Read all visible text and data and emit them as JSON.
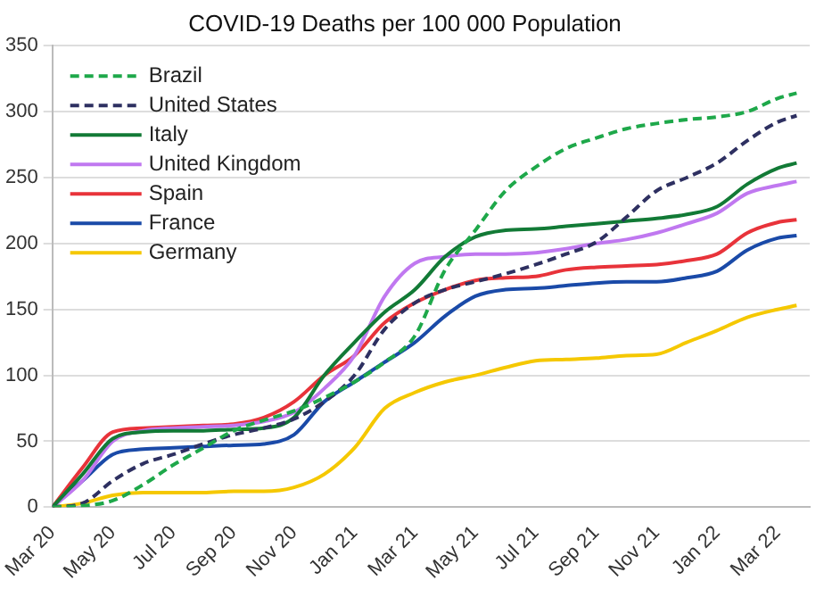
{
  "chart_data": {
    "type": "line",
    "title": "COVID-19 Deaths per 100 000 Population",
    "x": [
      "2020-03",
      "2020-04",
      "2020-05",
      "2020-06",
      "2020-07",
      "2020-08",
      "2020-09",
      "2020-10",
      "2020-11",
      "2020-12",
      "2021-01",
      "2021-02",
      "2021-03",
      "2021-04",
      "2021-05",
      "2021-06",
      "2021-07",
      "2021-08",
      "2021-09",
      "2021-10",
      "2021-11",
      "2021-12",
      "2022-01",
      "2022-02",
      "2022-03",
      "2022-03-20"
    ],
    "series": [
      {
        "name": "Brazil",
        "color": "#1ea84a",
        "line_style": "dashed",
        "values": [
          0,
          1,
          5,
          17,
          32,
          45,
          58,
          66,
          73,
          83,
          95,
          110,
          130,
          180,
          210,
          240,
          258,
          272,
          280,
          287,
          291,
          294,
          296,
          300,
          310,
          314
        ]
      },
      {
        "name": "United States",
        "color": "#2e3061",
        "line_style": "dashed",
        "values": [
          0,
          3,
          20,
          33,
          40,
          48,
          55,
          60,
          67,
          80,
          100,
          135,
          155,
          165,
          171,
          177,
          184,
          192,
          201,
          220,
          240,
          250,
          261,
          278,
          292,
          297
        ]
      },
      {
        "name": "Italy",
        "color": "#127a36",
        "line_style": "solid",
        "values": [
          0,
          25,
          52,
          57,
          58,
          58,
          59,
          60,
          68,
          100,
          125,
          148,
          165,
          190,
          205,
          210,
          211,
          213,
          215,
          217,
          219,
          222,
          228,
          245,
          257,
          261
        ]
      },
      {
        "name": "United Kingdom",
        "color": "#c078f0",
        "line_style": "solid",
        "values": [
          0,
          20,
          50,
          58,
          60,
          61,
          62,
          65,
          72,
          90,
          115,
          160,
          185,
          190,
          192,
          192,
          193,
          196,
          200,
          203,
          208,
          215,
          223,
          238,
          244,
          247
        ]
      },
      {
        "name": "Spain",
        "color": "#e8333a",
        "line_style": "solid",
        "values": [
          0,
          30,
          57,
          60,
          61,
          62,
          63,
          68,
          80,
          100,
          115,
          140,
          155,
          165,
          172,
          174,
          175,
          180,
          182,
          183,
          184,
          187,
          192,
          208,
          216,
          218
        ]
      },
      {
        "name": "France",
        "color": "#1a4aa8",
        "line_style": "solid",
        "values": [
          0,
          20,
          40,
          44,
          45,
          46,
          47,
          48,
          55,
          80,
          95,
          110,
          125,
          145,
          160,
          165,
          166,
          168,
          170,
          171,
          171,
          174,
          179,
          195,
          204,
          206
        ]
      },
      {
        "name": "Germany",
        "color": "#f5c800",
        "line_style": "solid",
        "values": [
          0,
          3,
          9,
          11,
          11,
          11,
          12,
          12,
          15,
          25,
          45,
          75,
          87,
          95,
          100,
          106,
          111,
          112,
          113,
          115,
          116,
          125,
          134,
          144,
          150,
          153
        ]
      }
    ],
    "xlim": [
      "2020-03",
      "2022-04-03"
    ],
    "xticks": [
      {
        "value": "2020-03",
        "label": "Mar 20"
      },
      {
        "value": "2020-05",
        "label": "May 20"
      },
      {
        "value": "2020-07",
        "label": "Jul 20"
      },
      {
        "value": "2020-09",
        "label": "Sep 20"
      },
      {
        "value": "2020-11",
        "label": "Nov 20"
      },
      {
        "value": "2021-01",
        "label": "Jan 21"
      },
      {
        "value": "2021-03",
        "label": "Mar 21"
      },
      {
        "value": "2021-05",
        "label": "May 21"
      },
      {
        "value": "2021-07",
        "label": "Jul 21"
      },
      {
        "value": "2021-09",
        "label": "Sep 21"
      },
      {
        "value": "2021-11",
        "label": "Nov 21"
      },
      {
        "value": "2022-01",
        "label": "Jan 22"
      },
      {
        "value": "2022-03",
        "label": "Mar 22"
      }
    ],
    "ylim": [
      0,
      350
    ],
    "yticks": [
      0,
      50,
      100,
      150,
      200,
      250,
      300,
      350
    ],
    "grid": "y",
    "legend": "top left",
    "marker": "none"
  }
}
